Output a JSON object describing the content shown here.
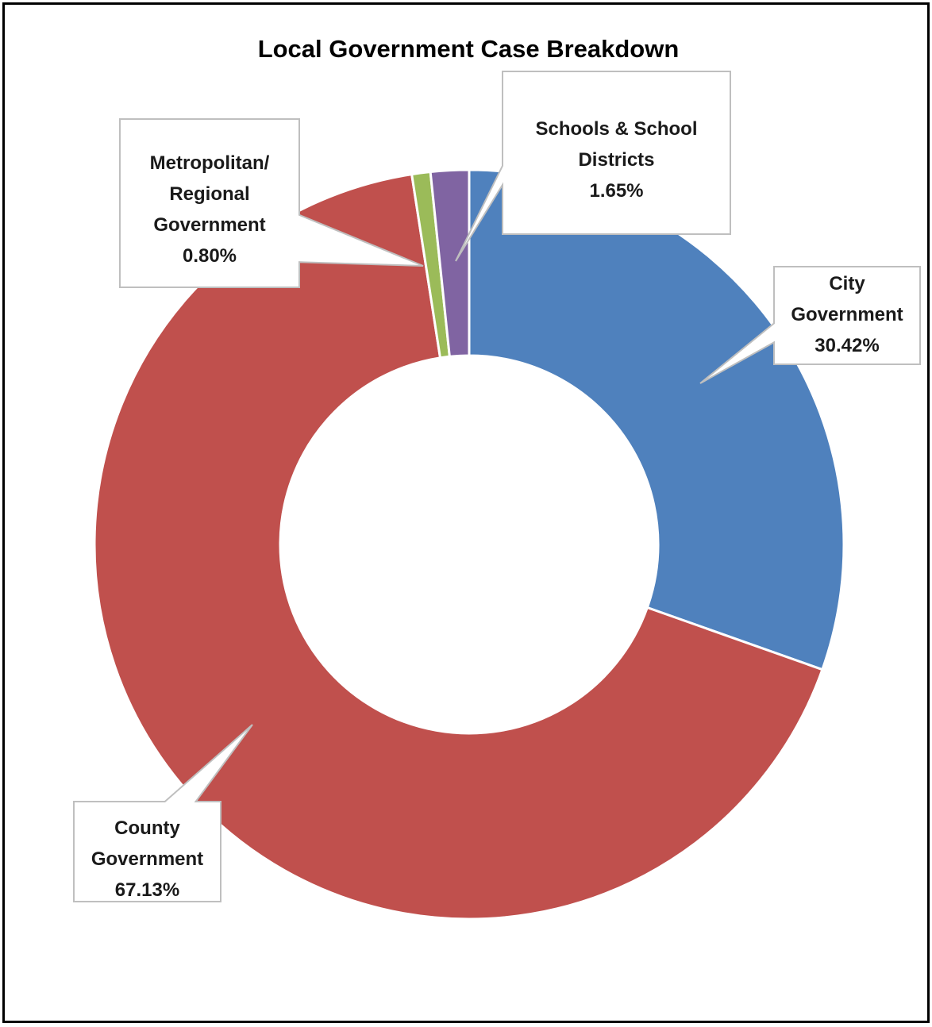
{
  "chart_data": {
    "type": "pie",
    "style": "donut",
    "title": "Local Government Case Breakdown",
    "legend": "none",
    "slices": [
      {
        "name": "City Government",
        "label_lines": [
          "City",
          "Government"
        ],
        "value": 30.42,
        "value_label": "30.42%",
        "color": "#4f81bd"
      },
      {
        "name": "County Government",
        "label_lines": [
          "County",
          "Government"
        ],
        "value": 67.13,
        "value_label": "67.13%",
        "color": "#c0504d"
      },
      {
        "name": "Metropolitan/ Regional Government",
        "label_lines": [
          "Metropolitan/",
          "Regional",
          "Government"
        ],
        "value": 0.8,
        "value_label": "0.80%",
        "color": "#9bbb59"
      },
      {
        "name": "Schools & School Districts",
        "label_lines": [
          "Schools & School",
          "Districts"
        ],
        "value": 1.65,
        "value_label": "1.65%",
        "color": "#8064a2"
      }
    ]
  }
}
